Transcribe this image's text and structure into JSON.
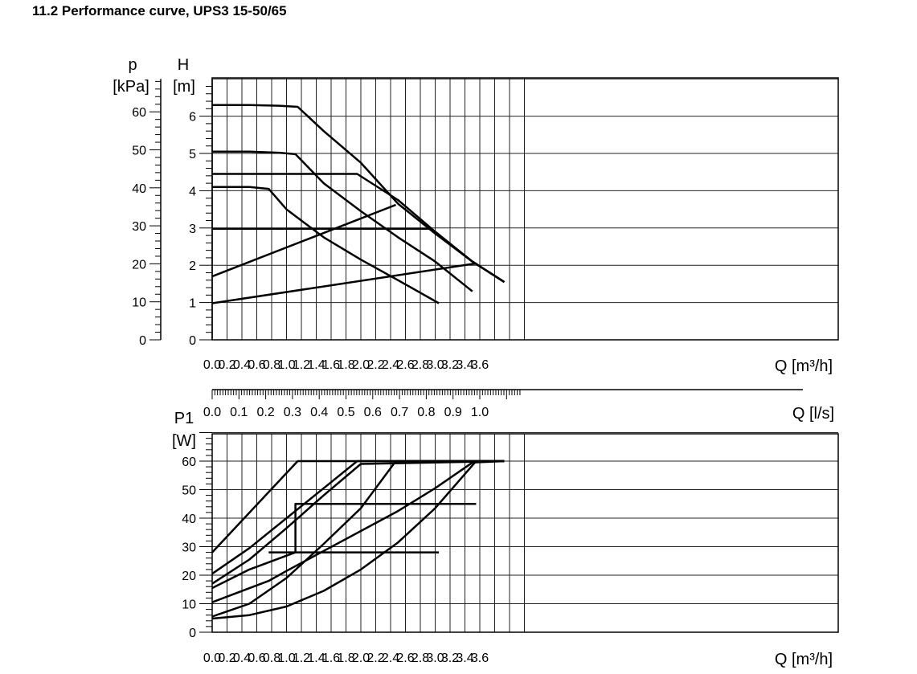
{
  "page": {
    "title": "11.2 Performance curve, UPS3 15-50/65"
  },
  "chart_data": [
    {
      "type": "line",
      "title": "",
      "xlabel": "Q [m³/h]",
      "ylabel": "H [m]",
      "ylabel_secondary": "p [kPa]",
      "xlim": [
        0,
        4.2
      ],
      "ylim": [
        0,
        7
      ],
      "x_ticks": [
        0,
        0.2,
        0.4,
        0.6,
        0.8,
        1.0,
        1.2,
        1.4,
        1.6,
        1.8,
        2.0,
        2.2,
        2.4,
        2.6,
        2.8,
        3.0,
        3.2,
        3.4,
        3.6
      ],
      "x_tick_labels": [
        "0.0",
        "0.2",
        "0.4",
        "0.6",
        "0.8",
        "1.0",
        "1.2",
        "1.4",
        "1.6",
        "1.8",
        "2.0",
        "2.2",
        "2.4",
        "2.6",
        "2.8",
        "3.0",
        "3.2",
        "3.4",
        "3.6"
      ],
      "y_ticks": [
        0,
        1,
        2,
        3,
        4,
        5,
        6
      ],
      "y_tick_labels": [
        "0",
        "1",
        "2",
        "3",
        "4",
        "5",
        "6"
      ],
      "p_ticks": [
        0,
        10,
        20,
        30,
        40,
        50,
        60
      ],
      "p_tick_labels": [
        "0",
        "10",
        "20",
        "30",
        "40",
        "50",
        "60"
      ],
      "grid": true,
      "series": [
        {
          "values": [
            [
              0,
              6.3
            ],
            [
              0.5,
              6.3
            ],
            [
              0.9,
              6.28
            ],
            [
              1.15,
              6.25
            ],
            [
              1.5,
              5.6
            ],
            [
              2.0,
              4.75
            ],
            [
              2.5,
              3.65
            ],
            [
              3.0,
              2.85
            ],
            [
              3.5,
              2.1
            ],
            [
              3.93,
              1.55
            ]
          ]
        },
        {
          "values": [
            [
              0,
              5.05
            ],
            [
              0.5,
              5.05
            ],
            [
              0.9,
              5.02
            ],
            [
              1.12,
              4.98
            ],
            [
              1.5,
              4.2
            ],
            [
              2.0,
              3.45
            ],
            [
              2.5,
              2.75
            ],
            [
              3.0,
              2.1
            ],
            [
              3.5,
              1.3
            ]
          ]
        },
        {
          "values": [
            [
              0,
              4.1
            ],
            [
              0.5,
              4.1
            ],
            [
              0.76,
              4.05
            ],
            [
              1.0,
              3.5
            ],
            [
              1.5,
              2.75
            ],
            [
              2.0,
              2.15
            ],
            [
              2.5,
              1.6
            ],
            [
              3.05,
              0.98
            ]
          ]
        },
        {
          "values": [
            [
              0,
              4.45
            ],
            [
              1.95,
              4.45
            ],
            [
              2.5,
              3.75
            ],
            [
              3.0,
              2.9
            ],
            [
              3.5,
              2.1
            ],
            [
              3.93,
              1.55
            ]
          ]
        },
        {
          "values": [
            [
              0,
              2.98
            ],
            [
              2.93,
              2.98
            ],
            [
              3.5,
              2.1
            ],
            [
              3.93,
              1.55
            ]
          ]
        },
        {
          "values": [
            [
              0,
              1.7
            ],
            [
              2.47,
              3.62
            ]
          ]
        },
        {
          "values": [
            [
              0,
              0.98
            ],
            [
              3.55,
              2.05
            ]
          ]
        }
      ]
    },
    {
      "type": "line",
      "title": "",
      "xlabel": "Q [l/s]",
      "xlim": [
        0,
        1.1667
      ],
      "x_ticks": [
        0,
        0.1,
        0.2,
        0.3,
        0.4,
        0.5,
        0.6,
        0.7,
        0.8,
        0.9,
        1.0
      ],
      "x_tick_labels": [
        "0.0",
        "0.1",
        "0.2",
        "0.3",
        "0.4",
        "0.5",
        "0.6",
        "0.7",
        "0.8",
        "0.9",
        "1.0"
      ]
    },
    {
      "type": "line",
      "title": "",
      "xlabel": "Q [m³/h]",
      "ylabel": "P1 [W]",
      "xlim": [
        0,
        4.2
      ],
      "ylim": [
        0,
        70
      ],
      "x_ticks": [
        0,
        0.2,
        0.4,
        0.6,
        0.8,
        1.0,
        1.2,
        1.4,
        1.6,
        1.8,
        2.0,
        2.2,
        2.4,
        2.6,
        2.8,
        3.0,
        3.2,
        3.4,
        3.6
      ],
      "x_tick_labels": [
        "0.0",
        "0.2",
        "0.4",
        "0.6",
        "0.8",
        "1.0",
        "1.2",
        "1.4",
        "1.6",
        "1.8",
        "2.0",
        "2.2",
        "2.4",
        "2.6",
        "2.8",
        "3.0",
        "3.2",
        "3.4",
        "3.6"
      ],
      "y_ticks": [
        0,
        10,
        20,
        30,
        40,
        50,
        60
      ],
      "y_tick_labels": [
        "0",
        "10",
        "20",
        "30",
        "40",
        "50",
        "60"
      ],
      "grid": true,
      "series": [
        {
          "values": [
            [
              0,
              28
            ],
            [
              1.15,
              60
            ],
            [
              3.93,
              60
            ]
          ]
        },
        {
          "values": [
            [
              0,
              20.5
            ],
            [
              0.5,
              29.5
            ],
            [
              1.0,
              40
            ],
            [
              1.5,
              50.5
            ],
            [
              1.95,
              60
            ],
            [
              3.93,
              60
            ]
          ]
        },
        {
          "values": [
            [
              0,
              17
            ],
            [
              0.5,
              25.5
            ],
            [
              1.0,
              36.5
            ],
            [
              1.5,
              48
            ],
            [
              2.0,
              59
            ],
            [
              3.93,
              60
            ]
          ]
        },
        {
          "values": [
            [
              0,
              15.5
            ],
            [
              0.5,
              22
            ],
            [
              1.12,
              28
            ],
            [
              1.12,
              45
            ],
            [
              3.55,
              45
            ]
          ]
        },
        {
          "values": [
            [
              0,
              10.5
            ],
            [
              0.76,
              18
            ],
            [
              1.0,
              21.5
            ],
            [
              1.5,
              28.5
            ],
            [
              2.0,
              35.5
            ],
            [
              2.5,
              42.5
            ],
            [
              3.0,
              50.5
            ],
            [
              3.5,
              59.5
            ],
            [
              3.93,
              60
            ]
          ]
        },
        {
          "values": [
            [
              0,
              5.5
            ],
            [
              0.5,
              10
            ],
            [
              1.0,
              19
            ],
            [
              1.5,
              31
            ],
            [
              2.0,
              43.5
            ],
            [
              2.47,
              60
            ],
            [
              3.93,
              60
            ]
          ]
        },
        {
          "values": [
            [
              0,
              4.8
            ],
            [
              0.5,
              6
            ],
            [
              1.0,
              9
            ],
            [
              1.5,
              14.5
            ],
            [
              2.0,
              22
            ],
            [
              2.5,
              31.5
            ],
            [
              3.0,
              43.5
            ],
            [
              3.5,
              58.5
            ],
            [
              3.55,
              60
            ],
            [
              3.93,
              60
            ]
          ]
        },
        {
          "values": [
            [
              0.76,
              28
            ],
            [
              3.05,
              28
            ]
          ]
        }
      ]
    }
  ]
}
